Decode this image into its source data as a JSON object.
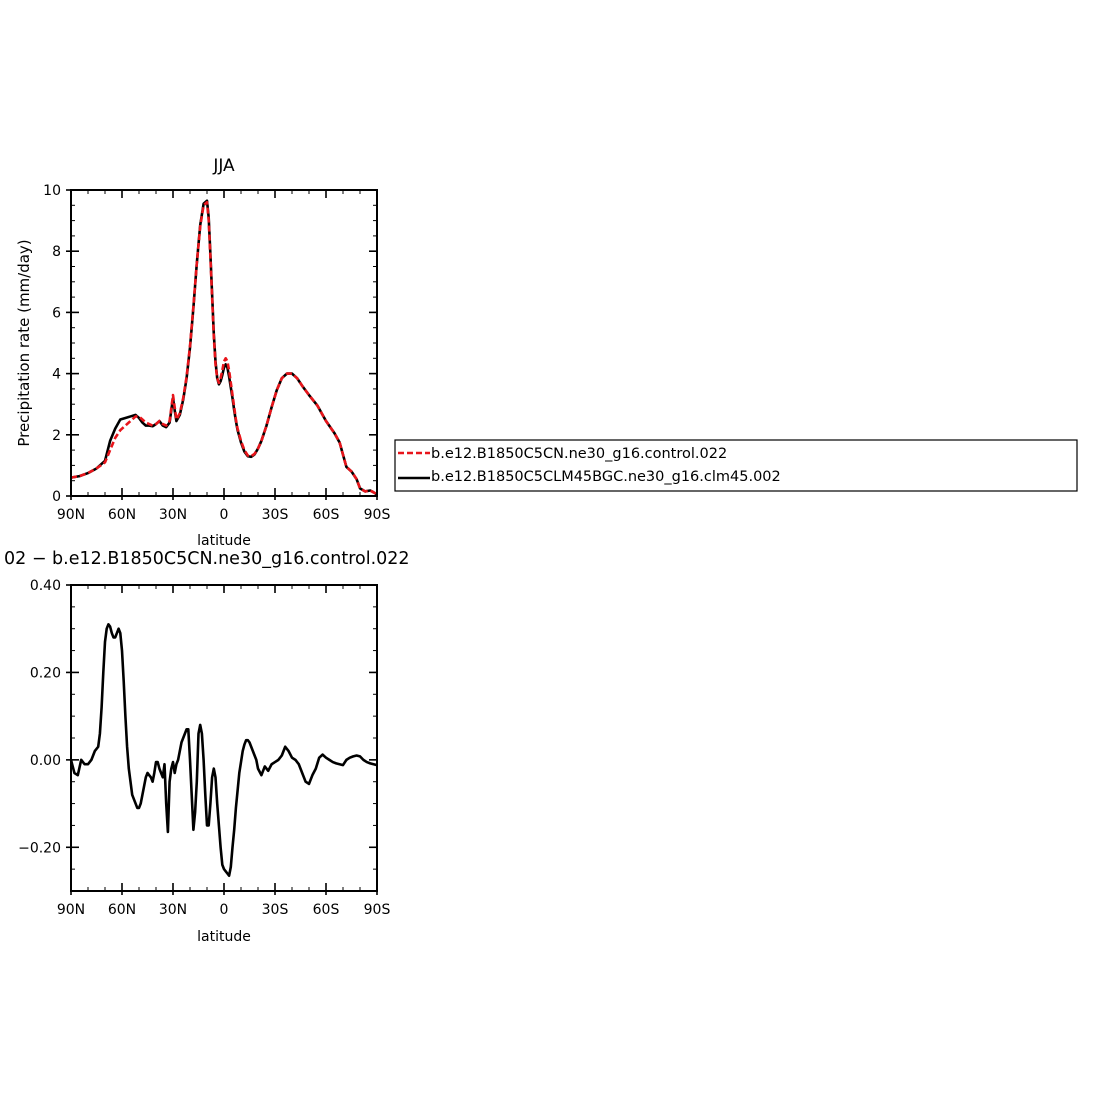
{
  "chart_data": [
    {
      "type": "line",
      "title": "JJA",
      "xlabel": "latitude",
      "ylabel": "Precipitation rate (mm/day)",
      "xlim": [
        90,
        -90
      ],
      "ylim": [
        0,
        10
      ],
      "x_ticks": [
        {
          "value": 90,
          "label": "90N"
        },
        {
          "value": 60,
          "label": "60N"
        },
        {
          "value": 30,
          "label": "30N"
        },
        {
          "value": 0,
          "label": "0"
        },
        {
          "value": -30,
          "label": "30S"
        },
        {
          "value": -60,
          "label": "60S"
        },
        {
          "value": -90,
          "label": "90S"
        }
      ],
      "y_ticks": [
        {
          "value": 0,
          "label": "0"
        },
        {
          "value": 2,
          "label": "2"
        },
        {
          "value": 4,
          "label": "4"
        },
        {
          "value": 6,
          "label": "6"
        },
        {
          "value": 8,
          "label": "8"
        },
        {
          "value": 10,
          "label": "10"
        }
      ],
      "legend": {
        "placement": "right",
        "entries": [
          {
            "label": "b.e12.B1850C5CN.ne30_g16.control.022",
            "color": "#e8151b",
            "dash": true
          },
          {
            "label": "b.e12.B1850C5CLM45BGC.ne30_g16.clm45.002",
            "color": "#000000",
            "dash": false
          }
        ]
      },
      "series": [
        {
          "name": "b.e12.B1850C5CN.ne30_g16.control.022",
          "color": "#e8151b",
          "dash": true,
          "x": [
            90,
            85,
            80,
            75,
            70,
            67,
            64,
            61,
            58,
            55,
            52,
            50,
            48,
            46,
            44,
            42,
            40,
            38,
            36,
            34,
            32,
            30,
            29,
            28,
            26,
            24,
            22,
            20,
            18,
            16,
            14,
            12,
            10,
            9,
            8,
            7,
            6,
            5,
            4,
            3,
            2,
            1,
            0,
            -1,
            -2,
            -3,
            -4,
            -5,
            -6,
            -7,
            -8,
            -10,
            -12,
            -14,
            -16,
            -18,
            -20,
            -22,
            -25,
            -28,
            -31,
            -34,
            -37,
            -40,
            -43,
            -46,
            -50,
            -55,
            -60,
            -65,
            -68,
            -70,
            -72,
            -75,
            -78,
            -80,
            -83,
            -86,
            -88,
            -90
          ],
          "y": [
            0.6,
            0.65,
            0.75,
            0.9,
            1.1,
            1.5,
            1.9,
            2.15,
            2.3,
            2.45,
            2.6,
            2.6,
            2.5,
            2.4,
            2.35,
            2.3,
            2.35,
            2.45,
            2.35,
            2.3,
            2.45,
            3.3,
            2.9,
            2.5,
            2.7,
            3.2,
            3.9,
            4.9,
            6.2,
            7.6,
            8.8,
            9.5,
            9.6,
            9.0,
            7.8,
            6.5,
            5.2,
            4.3,
            3.85,
            3.7,
            3.85,
            4.1,
            4.4,
            4.5,
            4.4,
            4.1,
            3.7,
            3.3,
            2.9,
            2.5,
            2.2,
            1.8,
            1.5,
            1.32,
            1.3,
            1.38,
            1.55,
            1.8,
            2.3,
            2.9,
            3.45,
            3.85,
            4.0,
            4.0,
            3.85,
            3.6,
            3.3,
            2.95,
            2.45,
            2.05,
            1.75,
            1.35,
            0.95,
            0.8,
            0.55,
            0.25,
            0.15,
            0.18,
            0.12,
            0.05
          ]
        },
        {
          "name": "b.e12.B1850C5CLM45BGC.ne30_g16.clm45.002",
          "color": "#000000",
          "dash": false,
          "x": [
            90,
            85,
            80,
            75,
            70,
            67,
            64,
            61,
            58,
            55,
            52,
            50,
            48,
            46,
            44,
            42,
            40,
            38,
            36,
            34,
            32,
            30,
            29,
            28,
            26,
            24,
            22,
            20,
            18,
            16,
            14,
            12,
            10,
            9,
            8,
            7,
            6,
            5,
            4,
            3,
            2,
            1,
            0,
            -1,
            -2,
            -3,
            -4,
            -5,
            -6,
            -7,
            -8,
            -10,
            -12,
            -14,
            -16,
            -18,
            -20,
            -22,
            -25,
            -28,
            -31,
            -34,
            -37,
            -40,
            -43,
            -46,
            -50,
            -55,
            -60,
            -65,
            -68,
            -70,
            -72,
            -75,
            -78,
            -80,
            -83,
            -86,
            -88,
            -90
          ],
          "y": [
            0.6,
            0.65,
            0.75,
            0.9,
            1.15,
            1.8,
            2.2,
            2.5,
            2.55,
            2.6,
            2.65,
            2.55,
            2.4,
            2.3,
            2.3,
            2.28,
            2.35,
            2.45,
            2.3,
            2.25,
            2.4,
            3.2,
            2.8,
            2.45,
            2.65,
            3.15,
            3.85,
            4.85,
            6.15,
            7.6,
            8.85,
            9.55,
            9.65,
            9.1,
            7.9,
            6.6,
            5.3,
            4.4,
            3.85,
            3.65,
            3.75,
            3.95,
            4.2,
            4.3,
            4.2,
            3.9,
            3.55,
            3.2,
            2.8,
            2.45,
            2.15,
            1.75,
            1.45,
            1.3,
            1.28,
            1.36,
            1.55,
            1.8,
            2.3,
            2.9,
            3.45,
            3.85,
            4.0,
            4.0,
            3.85,
            3.6,
            3.3,
            2.95,
            2.45,
            2.05,
            1.75,
            1.35,
            0.95,
            0.8,
            0.55,
            0.25,
            0.15,
            0.18,
            0.12,
            0.05
          ]
        }
      ]
    },
    {
      "type": "line",
      "title": "02 − b.e12.B1850C5CN.ne30_g16.control.022",
      "xlabel": "latitude",
      "ylabel": "",
      "xlim": [
        90,
        -90
      ],
      "ylim": [
        -0.3,
        0.4
      ],
      "x_ticks": [
        {
          "value": 90,
          "label": "90N"
        },
        {
          "value": 60,
          "label": "60N"
        },
        {
          "value": 30,
          "label": "30N"
        },
        {
          "value": 0,
          "label": "0"
        },
        {
          "value": -30,
          "label": "30S"
        },
        {
          "value": -60,
          "label": "60S"
        },
        {
          "value": -90,
          "label": "90S"
        }
      ],
      "y_ticks": [
        {
          "value": -0.2,
          "label": "−0.20"
        },
        {
          "value": 0.0,
          "label": "0.00"
        },
        {
          "value": 0.2,
          "label": "0.20"
        },
        {
          "value": 0.4,
          "label": "0.40"
        }
      ],
      "series": [
        {
          "name": "",
          "color": "#000000",
          "dash": false,
          "x": [
            90,
            88,
            86,
            84,
            82,
            80,
            78,
            76,
            74,
            73,
            72,
            71,
            70,
            69,
            68,
            67,
            66,
            65,
            64,
            63,
            62,
            61,
            60,
            59,
            58,
            57,
            56,
            55,
            54,
            53,
            52,
            51,
            50,
            49,
            48,
            47,
            46,
            45,
            44,
            43,
            42,
            41,
            40,
            39,
            38,
            37,
            36,
            35,
            34,
            33,
            32,
            31,
            30,
            29,
            28,
            27,
            26,
            25,
            24,
            23,
            22,
            21,
            20,
            19,
            18,
            17,
            16,
            15,
            14,
            13,
            12,
            11,
            10,
            9,
            8,
            7,
            6,
            5,
            4,
            3,
            2,
            1,
            0,
            -1,
            -2,
            -3,
            -4,
            -5,
            -6,
            -7,
            -8,
            -9,
            -10,
            -11,
            -12,
            -13,
            -14,
            -15,
            -16,
            -17,
            -18,
            -19,
            -20,
            -22,
            -24,
            -26,
            -28,
            -30,
            -32,
            -34,
            -36,
            -38,
            -40,
            -42,
            -44,
            -46,
            -48,
            -50,
            -52,
            -54,
            -56,
            -58,
            -60,
            -62,
            -64,
            -66,
            -68,
            -70,
            -72,
            -74,
            -76,
            -78,
            -80,
            -82,
            -84,
            -86,
            -88,
            -90
          ],
          "y": [
            0.0,
            -0.03,
            -0.035,
            0.0,
            -0.01,
            -0.01,
            0.0,
            0.02,
            0.03,
            0.06,
            0.12,
            0.2,
            0.27,
            0.3,
            0.31,
            0.305,
            0.29,
            0.28,
            0.28,
            0.29,
            0.3,
            0.29,
            0.25,
            0.18,
            0.1,
            0.03,
            -0.02,
            -0.05,
            -0.08,
            -0.09,
            -0.1,
            -0.11,
            -0.11,
            -0.1,
            -0.08,
            -0.06,
            -0.04,
            -0.03,
            -0.035,
            -0.04,
            -0.05,
            -0.03,
            -0.005,
            -0.005,
            -0.02,
            -0.03,
            -0.04,
            -0.01,
            -0.1,
            -0.165,
            -0.05,
            -0.02,
            -0.005,
            -0.03,
            -0.01,
            0.0,
            0.02,
            0.04,
            0.05,
            0.06,
            0.07,
            0.07,
            0.0,
            -0.08,
            -0.16,
            -0.12,
            -0.05,
            0.06,
            0.08,
            0.06,
            0.0,
            -0.08,
            -0.15,
            -0.15,
            -0.1,
            -0.04,
            -0.02,
            -0.04,
            -0.1,
            -0.15,
            -0.2,
            -0.24,
            -0.25,
            -0.255,
            -0.26,
            -0.265,
            -0.245,
            -0.2,
            -0.16,
            -0.11,
            -0.07,
            -0.03,
            -0.005,
            0.02,
            0.035,
            0.045,
            0.045,
            0.04,
            0.03,
            0.02,
            0.01,
            0.0,
            -0.02,
            -0.035,
            -0.015,
            -0.025,
            -0.01,
            -0.005,
            0.0,
            0.01,
            0.03,
            0.02,
            0.005,
            0.0,
            -0.01,
            -0.03,
            -0.05,
            -0.055,
            -0.035,
            -0.02,
            0.005,
            0.012,
            0.005,
            0.0,
            -0.005,
            -0.008,
            -0.01,
            -0.012,
            0.0,
            0.005,
            0.008,
            0.01,
            0.008,
            0.0,
            -0.005,
            -0.008,
            -0.01,
            -0.012
          ]
        }
      ]
    }
  ]
}
